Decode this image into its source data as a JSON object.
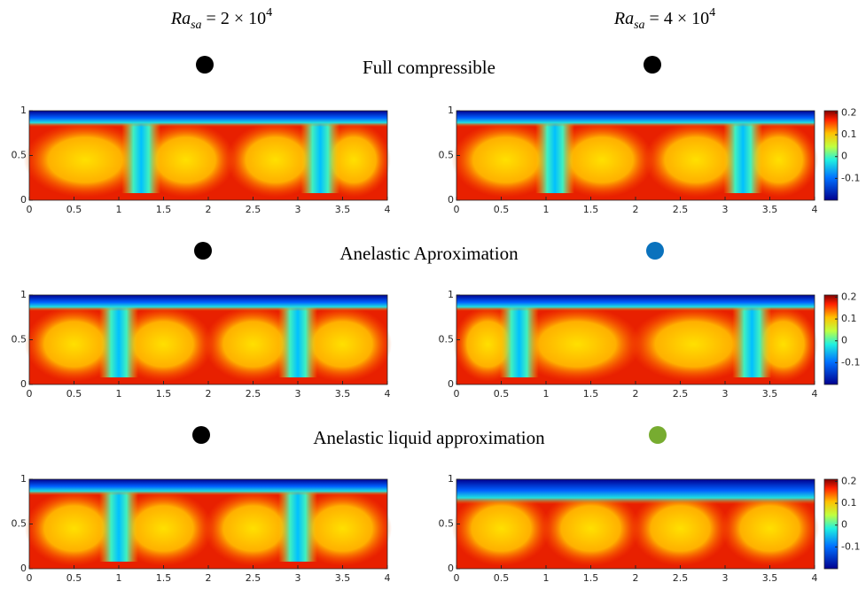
{
  "columns": [
    {
      "base": "Ra",
      "sub": "sa",
      "rest": " = 2 × 10",
      "sup": "4"
    },
    {
      "base": "Ra",
      "sub": "sa",
      "rest": " = 4 × 10",
      "sup": "4"
    }
  ],
  "rows": [
    {
      "title": "Full compressible",
      "dots": [
        "#000000",
        "#000000"
      ]
    },
    {
      "title": "Anelastic Aproximation",
      "dots": [
        "#000000",
        "#0a72bd"
      ]
    },
    {
      "title": "Anelastic liquid approximation",
      "dots": [
        "#000000",
        "#77ac30"
      ]
    }
  ],
  "chart_data": [
    {
      "type": "heatmap",
      "xlim": [
        0,
        4
      ],
      "ylim": [
        0,
        1
      ],
      "xticks": [
        0,
        0.5,
        1,
        1.5,
        2,
        2.5,
        3,
        3.5,
        4
      ],
      "yticks": [
        0,
        0.5,
        1
      ]
    },
    {
      "type": "heatmap",
      "xlim": [
        0,
        4
      ],
      "ylim": [
        0,
        1
      ],
      "xticks": [
        0,
        0.5,
        1,
        1.5,
        2,
        2.5,
        3,
        3.5,
        4
      ],
      "yticks": [
        0,
        0.5,
        1
      ],
      "colorbar": {
        "clim": [
          -0.2,
          0.21
        ],
        "ticks": [
          -0.1,
          0,
          0.1,
          0.2
        ]
      }
    },
    {
      "type": "heatmap",
      "xlim": [
        0,
        4
      ],
      "ylim": [
        0,
        1
      ],
      "xticks": [
        0,
        0.5,
        1,
        1.5,
        2,
        2.5,
        3,
        3.5,
        4
      ],
      "yticks": [
        0,
        0.5,
        1
      ]
    },
    {
      "type": "heatmap",
      "xlim": [
        0,
        4
      ],
      "ylim": [
        0,
        1
      ],
      "xticks": [
        0,
        0.5,
        1,
        1.5,
        2,
        2.5,
        3,
        3.5,
        4
      ],
      "yticks": [
        0,
        0.5,
        1
      ],
      "colorbar": {
        "clim": [
          -0.2,
          0.21
        ],
        "ticks": [
          -0.1,
          0,
          0.1,
          0.2
        ]
      }
    },
    {
      "type": "heatmap",
      "xlim": [
        0,
        4
      ],
      "ylim": [
        0,
        1
      ],
      "xticks": [
        0,
        0.5,
        1,
        1.5,
        2,
        2.5,
        3,
        3.5,
        4
      ],
      "yticks": [
        0,
        0.5,
        1
      ]
    },
    {
      "type": "heatmap",
      "xlim": [
        0,
        4
      ],
      "ylim": [
        0,
        1
      ],
      "xticks": [
        0,
        0.5,
        1,
        1.5,
        2,
        2.5,
        3,
        3.5,
        4
      ],
      "yticks": [
        0,
        0.5,
        1
      ],
      "colorbar": {
        "clim": [
          -0.2,
          0.21
        ],
        "ticks": [
          -0.1,
          0,
          0.1,
          0.2
        ]
      }
    }
  ]
}
